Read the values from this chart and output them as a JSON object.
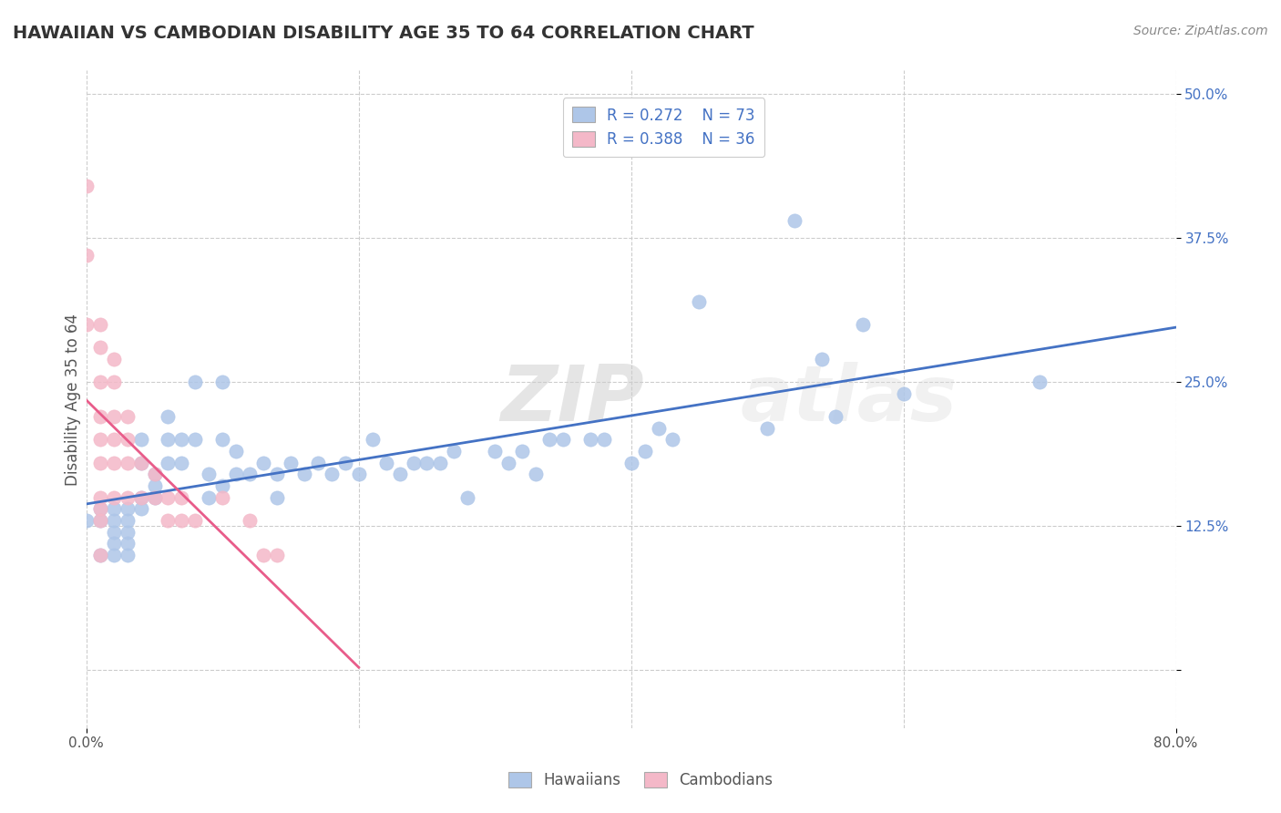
{
  "title": "HAWAIIAN VS CAMBODIAN DISABILITY AGE 35 TO 64 CORRELATION CHART",
  "source_text": "Source: ZipAtlas.com",
  "ylabel_label": "Disability Age 35 to 64",
  "hawaiian_R": 0.272,
  "hawaiian_N": 73,
  "cambodian_R": 0.388,
  "cambodian_N": 36,
  "hawaiian_color": "#aec6e8",
  "hawaiian_line_color": "#4472c4",
  "cambodian_color": "#f4b8c8",
  "cambodian_line_color": "#e85c8a",
  "background_color": "#ffffff",
  "grid_color": "#cccccc",
  "watermark_zip": "ZIP",
  "watermark_atlas": "atlas",
  "xlim": [
    0.0,
    0.8
  ],
  "ylim": [
    -0.05,
    0.52
  ],
  "y_ticks": [
    0.0,
    0.125,
    0.25,
    0.375,
    0.5
  ],
  "y_tick_labels": [
    "",
    "12.5%",
    "25.0%",
    "37.5%",
    "50.0%"
  ],
  "hawaiian_x": [
    0.0,
    0.01,
    0.01,
    0.01,
    0.02,
    0.02,
    0.02,
    0.02,
    0.02,
    0.03,
    0.03,
    0.03,
    0.03,
    0.03,
    0.04,
    0.04,
    0.04,
    0.04,
    0.05,
    0.05,
    0.05,
    0.06,
    0.06,
    0.06,
    0.07,
    0.07,
    0.08,
    0.08,
    0.09,
    0.09,
    0.1,
    0.1,
    0.1,
    0.11,
    0.11,
    0.12,
    0.13,
    0.14,
    0.14,
    0.15,
    0.16,
    0.17,
    0.18,
    0.19,
    0.2,
    0.21,
    0.22,
    0.23,
    0.24,
    0.25,
    0.26,
    0.27,
    0.28,
    0.3,
    0.31,
    0.32,
    0.33,
    0.34,
    0.35,
    0.37,
    0.38,
    0.4,
    0.41,
    0.42,
    0.43,
    0.45,
    0.5,
    0.52,
    0.54,
    0.55,
    0.57,
    0.6,
    0.7
  ],
  "hawaiian_y": [
    0.13,
    0.14,
    0.13,
    0.1,
    0.13,
    0.14,
    0.12,
    0.11,
    0.1,
    0.14,
    0.13,
    0.12,
    0.11,
    0.1,
    0.2,
    0.18,
    0.15,
    0.14,
    0.17,
    0.16,
    0.15,
    0.22,
    0.2,
    0.18,
    0.2,
    0.18,
    0.25,
    0.2,
    0.17,
    0.15,
    0.25,
    0.2,
    0.16,
    0.19,
    0.17,
    0.17,
    0.18,
    0.17,
    0.15,
    0.18,
    0.17,
    0.18,
    0.17,
    0.18,
    0.17,
    0.2,
    0.18,
    0.17,
    0.18,
    0.18,
    0.18,
    0.19,
    0.15,
    0.19,
    0.18,
    0.19,
    0.17,
    0.2,
    0.2,
    0.2,
    0.2,
    0.18,
    0.19,
    0.21,
    0.2,
    0.32,
    0.21,
    0.39,
    0.27,
    0.22,
    0.3,
    0.24,
    0.25
  ],
  "cambodian_x": [
    0.0,
    0.0,
    0.0,
    0.01,
    0.01,
    0.01,
    0.01,
    0.01,
    0.01,
    0.01,
    0.01,
    0.01,
    0.01,
    0.02,
    0.02,
    0.02,
    0.02,
    0.02,
    0.02,
    0.03,
    0.03,
    0.03,
    0.03,
    0.04,
    0.04,
    0.05,
    0.05,
    0.06,
    0.06,
    0.07,
    0.07,
    0.08,
    0.1,
    0.12,
    0.13,
    0.14
  ],
  "cambodian_y": [
    0.42,
    0.36,
    0.3,
    0.3,
    0.28,
    0.25,
    0.22,
    0.2,
    0.18,
    0.15,
    0.14,
    0.13,
    0.1,
    0.27,
    0.25,
    0.22,
    0.2,
    0.18,
    0.15,
    0.22,
    0.2,
    0.18,
    0.15,
    0.18,
    0.15,
    0.17,
    0.15,
    0.15,
    0.13,
    0.15,
    0.13,
    0.13,
    0.15,
    0.13,
    0.1,
    0.1
  ]
}
